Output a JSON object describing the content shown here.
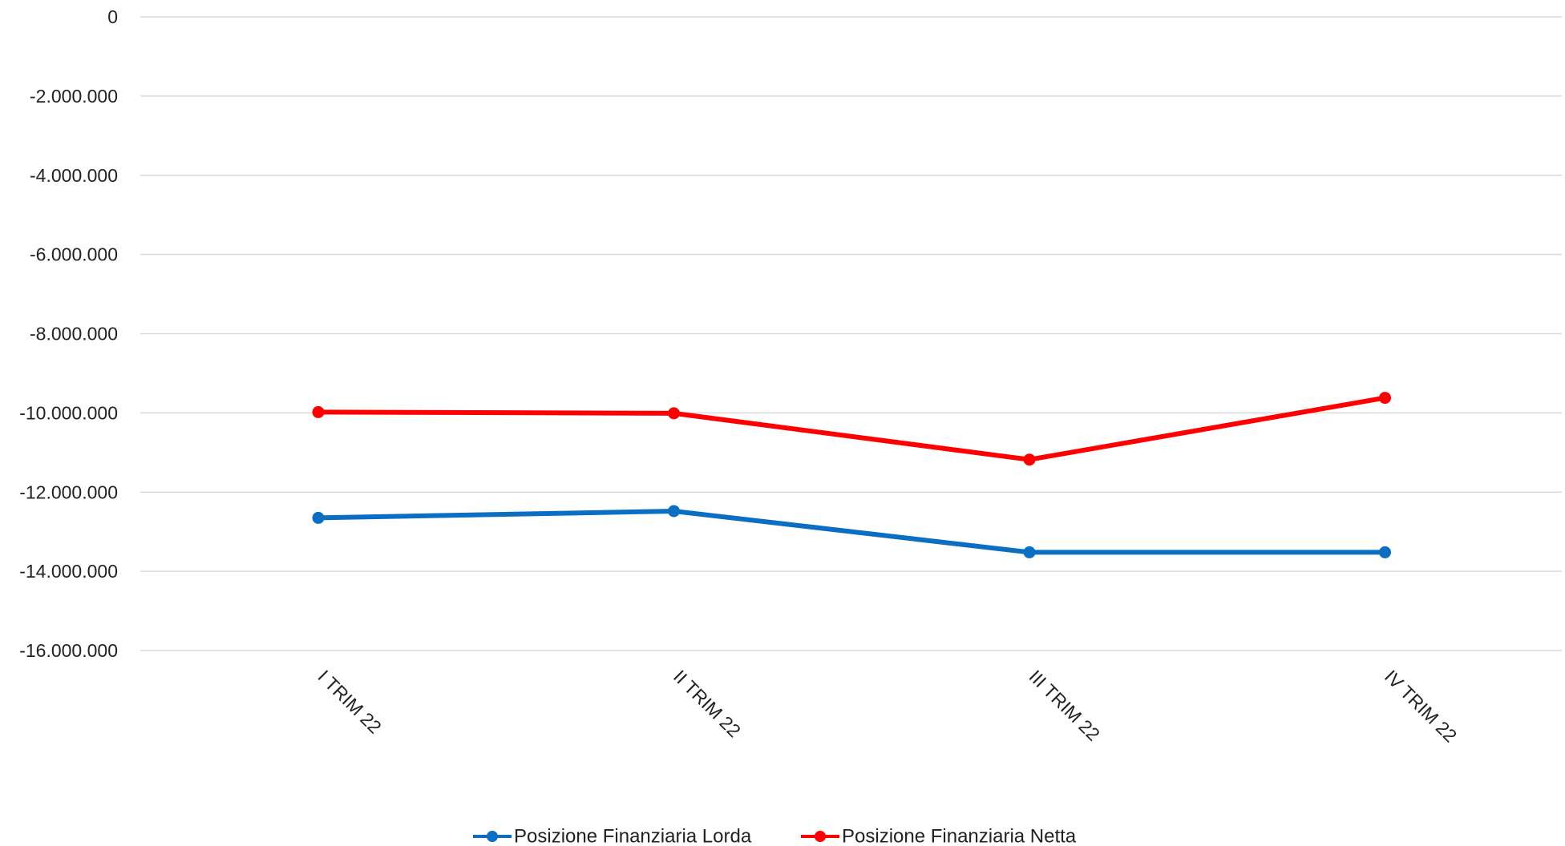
{
  "chart_data": {
    "type": "line",
    "title": "",
    "xlabel": "",
    "ylabel": "",
    "categories": [
      "I TRIM 22",
      "II TRIM 22",
      "III TRIM 22",
      "IV TRIM 22"
    ],
    "ylim": [
      -16000000,
      0
    ],
    "yticks": [
      0,
      -2000000,
      -4000000,
      -6000000,
      -8000000,
      -10000000,
      -12000000,
      -14000000,
      -16000000
    ],
    "ytick_labels": [
      "0",
      "-2.000.000",
      "-4.000.000",
      "-6.000.000",
      "-8.000.000",
      "-10.000.000",
      "-12.000.000",
      "-14.000.000",
      "-16.000.000"
    ],
    "grid": true,
    "legend_position": "bottom",
    "series": [
      {
        "name": "Posizione Finanziaria Lorda",
        "color": "#0a6fc2",
        "values": [
          -12650000,
          -12480000,
          -13520000,
          -13520000
        ]
      },
      {
        "name": "Posizione Finanziaria Netta",
        "color": "#ff0000",
        "values": [
          -9980000,
          -10010000,
          -11180000,
          -9620000
        ]
      }
    ]
  }
}
